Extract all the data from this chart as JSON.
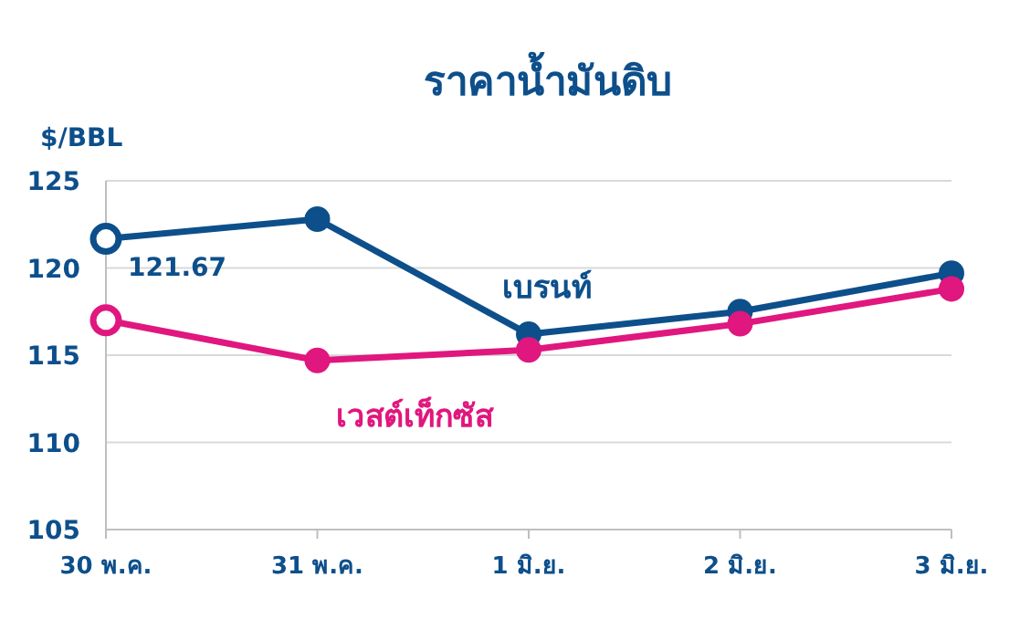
{
  "chart_data": {
    "type": "line",
    "title": "ราคาน้ำมันดิบ",
    "ylabel": "$/BBL",
    "categories": [
      "30 พ.ค.",
      "31 พ.ค.",
      "1 มิ.ย.",
      "2 มิ.ย.",
      "3 มิ.ย."
    ],
    "series": [
      {
        "name": "เบรนท์",
        "color": "#0d4f8b",
        "values": [
          121.67,
          122.8,
          116.2,
          117.5,
          119.7
        ],
        "value_labels": [
          "121.67",
          null,
          null,
          null,
          null
        ]
      },
      {
        "name": "เวสต์เท็กซัส",
        "color": "#e0177e",
        "values": [
          117.0,
          114.7,
          115.3,
          116.8,
          118.8
        ]
      }
    ],
    "ylim": [
      105,
      125
    ],
    "yticks": [
      105,
      110,
      115,
      120,
      125
    ],
    "grid": "y",
    "marker": "circle",
    "line_style": "solid"
  }
}
